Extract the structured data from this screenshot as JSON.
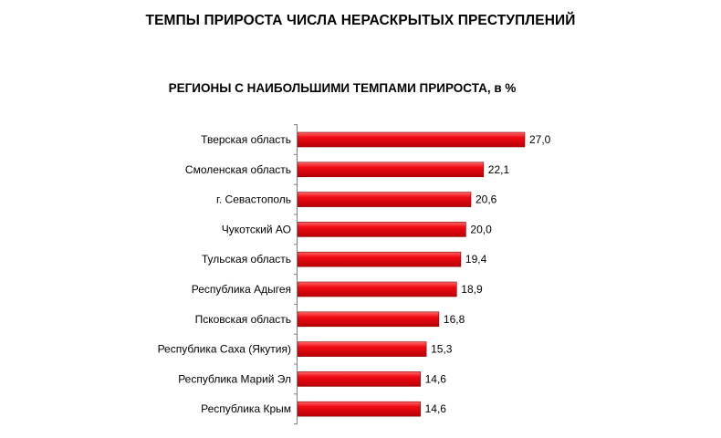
{
  "page": {
    "title": "ТЕМПЫ ПРИРОСТА ЧИСЛА НЕРАСКРЫТЫХ ПРЕСТУПЛЕНИЙ"
  },
  "chart_data": {
    "type": "bar",
    "orientation": "horizontal",
    "title": "РЕГИОНЫ С НАИБОЛЬШИМИ ТЕМПАМИ ПРИРОСТА, в %",
    "categories": [
      "Тверская область",
      "Смоленская область",
      "г. Севастополь",
      "Чукотский АО",
      "Тульская область",
      "Республика Адыгея",
      "Псковская область",
      "Республика Саха (Якутия)",
      "Республика Марий Эл",
      "Республика Крым"
    ],
    "values": [
      27.0,
      22.1,
      20.6,
      20.0,
      19.4,
      18.9,
      16.8,
      15.3,
      14.6,
      14.6
    ],
    "value_labels": [
      "27,0",
      "22,1",
      "20,6",
      "20,0",
      "19,4",
      "18,9",
      "16,8",
      "15,3",
      "14,6",
      "14,6"
    ],
    "xlim": [
      0,
      27.0
    ],
    "grid": false,
    "legend": "none",
    "bar_color": "#e8000b",
    "bar_edge_color": "#8b0000"
  }
}
